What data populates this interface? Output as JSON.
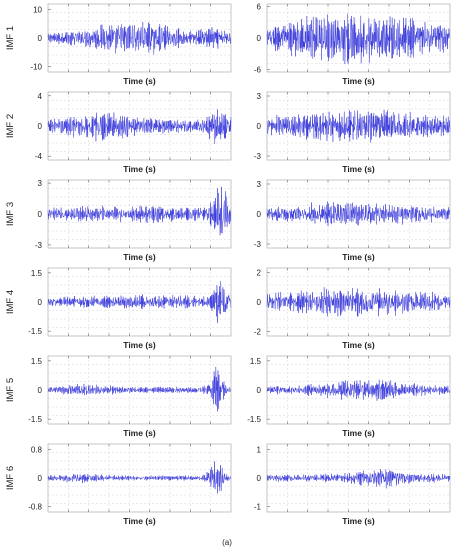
{
  "caption": "(a)",
  "colors": {
    "trace": "#2b2bd8",
    "grid": "#d4d4d4",
    "frame": "#b8b8b8"
  },
  "chart_data": [
    {
      "type": "line",
      "row": 1,
      "column": "left",
      "ylabel": "IMF 1",
      "xlabel": "Time (s)",
      "ylim": [
        -12,
        12
      ],
      "yticks": [
        "10",
        "0",
        "-10"
      ],
      "ytick_values": [
        10,
        0,
        -10
      ],
      "amplitude": 6.5,
      "envelope": "broad-mid"
    },
    {
      "type": "line",
      "row": 1,
      "column": "right",
      "ylabel": "",
      "xlabel": "Time (s)",
      "ylim": [
        -6.5,
        6.5
      ],
      "yticks": [
        "6",
        "0",
        "-6"
      ],
      "ytick_values": [
        6,
        0,
        -6
      ],
      "amplitude": 4.6,
      "envelope": "dense"
    },
    {
      "type": "line",
      "row": 2,
      "column": "left",
      "ylabel": "IMF 2",
      "xlabel": "Time (s)",
      "ylim": [
        -4.5,
        4.5
      ],
      "yticks": [
        "4",
        "0",
        "-4"
      ],
      "ytick_values": [
        4,
        0,
        -4
      ],
      "amplitude": 2.3,
      "envelope": "mid-end"
    },
    {
      "type": "line",
      "row": 2,
      "column": "right",
      "ylabel": "",
      "xlabel": "Time (s)",
      "ylim": [
        -3.4,
        3.4
      ],
      "yticks": [
        "3",
        "0",
        "-3"
      ],
      "ytick_values": [
        3,
        0,
        -3
      ],
      "amplitude": 1.7,
      "envelope": "dense"
    },
    {
      "type": "line",
      "row": 3,
      "column": "left",
      "ylabel": "IMF 3",
      "xlabel": "Time (s)",
      "ylim": [
        -3.3,
        3.3
      ],
      "yticks": [
        "3",
        "0",
        "-3"
      ],
      "ytick_values": [
        3,
        0,
        -3
      ],
      "amplitude": 1.3,
      "envelope": "late-burst"
    },
    {
      "type": "line",
      "row": 3,
      "column": "right",
      "ylabel": "",
      "xlabel": "Time (s)",
      "ylim": [
        -3.4,
        3.4
      ],
      "yticks": [
        "3",
        "0",
        "-3"
      ],
      "ytick_values": [
        3,
        0,
        -3
      ],
      "amplitude": 1.2,
      "envelope": "dense"
    },
    {
      "type": "line",
      "row": 4,
      "column": "left",
      "ylabel": "IMF 4",
      "xlabel": "Time (s)",
      "ylim": [
        -1.75,
        1.75
      ],
      "yticks": [
        "1.5",
        "0",
        "-1.5"
      ],
      "ytick_values": [
        1.5,
        0,
        -1.5
      ],
      "amplitude": 0.55,
      "envelope": "late-burst"
    },
    {
      "type": "line",
      "row": 4,
      "column": "right",
      "ylabel": "",
      "xlabel": "Time (s)",
      "ylim": [
        -2.3,
        2.3
      ],
      "yticks": [
        "2",
        "0",
        "-2"
      ],
      "ytick_values": [
        2,
        0,
        -2
      ],
      "amplitude": 0.95,
      "envelope": "dense"
    },
    {
      "type": "line",
      "row": 5,
      "column": "left",
      "ylabel": "IMF 5",
      "xlabel": "Time (s)",
      "ylim": [
        -1.75,
        1.75
      ],
      "yticks": [
        "1.5",
        "0",
        "-1.5"
      ],
      "ytick_values": [
        1.5,
        0,
        -1.5
      ],
      "amplitude": 0.45,
      "envelope": "late-spikes"
    },
    {
      "type": "line",
      "row": 5,
      "column": "right",
      "ylabel": "",
      "xlabel": "Time (s)",
      "ylim": [
        -1.75,
        1.75
      ],
      "yticks": [
        "1.5",
        "0",
        "-1.5"
      ],
      "ytick_values": [
        1.5,
        0,
        -1.5
      ],
      "amplitude": 0.55,
      "envelope": "mid"
    },
    {
      "type": "line",
      "row": 6,
      "column": "left",
      "ylabel": "IMF 6",
      "xlabel": "Time (s)",
      "ylim": [
        -0.95,
        0.95
      ],
      "yticks": [
        "0.8",
        "0",
        "-0.8"
      ],
      "ytick_values": [
        0.8,
        0,
        -0.8
      ],
      "amplitude": 0.2,
      "envelope": "late-spikes"
    },
    {
      "type": "line",
      "row": 6,
      "column": "right",
      "ylabel": "",
      "xlabel": "Time (s)",
      "ylim": [
        -1.2,
        1.2
      ],
      "yticks": [
        "1",
        "0",
        "-1"
      ],
      "ytick_values": [
        1,
        0,
        -1
      ],
      "amplitude": 0.32,
      "envelope": "mid-late"
    }
  ]
}
